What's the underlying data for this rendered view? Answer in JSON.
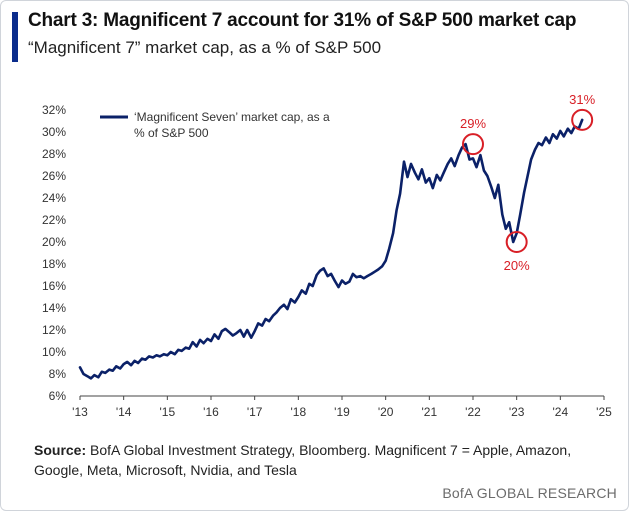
{
  "header": {
    "title": "Chart 3: Magnificent 7 account for 31% of S&P 500 market cap",
    "subtitle": "“Magnificent 7” market cap, as a % of S&P 500"
  },
  "footer": {
    "source_label": "Source:",
    "source_text": " BofA Global Investment Strategy, Bloomberg. Magnificent 7 = Apple, Amazon, Google, Meta, Microsoft, Nvidia, and Tesla",
    "brand": "BofA GLOBAL RESEARCH"
  },
  "colors": {
    "line": "#0b2168",
    "accent": "#0b2c8c",
    "highlight": "#d81f26",
    "axis": "#444444"
  },
  "chart_data": {
    "type": "line",
    "ylim": [
      6,
      32
    ],
    "xlim": [
      2013,
      2025
    ],
    "y_ticks": [
      6,
      8,
      10,
      12,
      14,
      16,
      18,
      20,
      22,
      24,
      26,
      28,
      30,
      32
    ],
    "y_tick_labels": [
      "6%",
      "8%",
      "10%",
      "12%",
      "14%",
      "16%",
      "18%",
      "20%",
      "22%",
      "24%",
      "26%",
      "28%",
      "30%",
      "32%"
    ],
    "x_ticks": [
      2013,
      2014,
      2015,
      2016,
      2017,
      2018,
      2019,
      2020,
      2021,
      2022,
      2023,
      2024,
      2025
    ],
    "x_tick_labels": [
      "'13",
      "'14",
      "'15",
      "'16",
      "'17",
      "'18",
      "'19",
      "'20",
      "'21",
      "'22",
      "'23",
      "'24",
      "'25"
    ],
    "grid": false,
    "legend_position": "top-left",
    "series": [
      {
        "name": "‘Magnificent Seven’ market cap, as a % of S&P 500",
        "x": [
          2013.0,
          2013.08,
          2013.17,
          2013.25,
          2013.33,
          2013.42,
          2013.5,
          2013.58,
          2013.67,
          2013.75,
          2013.83,
          2013.92,
          2014.0,
          2014.08,
          2014.17,
          2014.25,
          2014.33,
          2014.42,
          2014.5,
          2014.58,
          2014.67,
          2014.75,
          2014.83,
          2014.92,
          2015.0,
          2015.08,
          2015.17,
          2015.25,
          2015.33,
          2015.42,
          2015.5,
          2015.58,
          2015.67,
          2015.75,
          2015.83,
          2015.92,
          2016.0,
          2016.08,
          2016.17,
          2016.25,
          2016.33,
          2016.42,
          2016.5,
          2016.58,
          2016.67,
          2016.75,
          2016.83,
          2016.92,
          2017.0,
          2017.08,
          2017.17,
          2017.25,
          2017.33,
          2017.42,
          2017.5,
          2017.58,
          2017.67,
          2017.75,
          2017.83,
          2017.92,
          2018.0,
          2018.08,
          2018.17,
          2018.25,
          2018.33,
          2018.42,
          2018.5,
          2018.58,
          2018.67,
          2018.75,
          2018.83,
          2018.92,
          2019.0,
          2019.08,
          2019.17,
          2019.25,
          2019.33,
          2019.42,
          2019.5,
          2019.58,
          2019.67,
          2019.75,
          2019.83,
          2019.92,
          2020.0,
          2020.08,
          2020.17,
          2020.25,
          2020.33,
          2020.42,
          2020.5,
          2020.58,
          2020.67,
          2020.75,
          2020.83,
          2020.92,
          2021.0,
          2021.08,
          2021.17,
          2021.25,
          2021.33,
          2021.42,
          2021.5,
          2021.58,
          2021.67,
          2021.75,
          2021.83,
          2021.92,
          2022.0,
          2022.08,
          2022.17,
          2022.25,
          2022.33,
          2022.42,
          2022.5,
          2022.58,
          2022.67,
          2022.75,
          2022.83,
          2022.92,
          2023.0,
          2023.08,
          2023.17,
          2023.25,
          2023.33,
          2023.42,
          2023.5,
          2023.58,
          2023.67,
          2023.75,
          2023.83,
          2023.92,
          2024.0,
          2024.08,
          2024.17,
          2024.25,
          2024.33,
          2024.42,
          2024.5
        ],
        "values": [
          8.6,
          8.0,
          7.8,
          7.6,
          7.9,
          7.7,
          8.2,
          8.1,
          8.4,
          8.3,
          8.7,
          8.5,
          8.9,
          9.1,
          8.8,
          9.2,
          9.0,
          9.4,
          9.3,
          9.6,
          9.5,
          9.7,
          9.6,
          9.8,
          9.7,
          10.0,
          9.8,
          10.2,
          10.1,
          10.4,
          10.3,
          10.9,
          10.5,
          11.1,
          10.8,
          11.2,
          11.0,
          11.6,
          11.2,
          11.9,
          12.1,
          11.8,
          11.5,
          11.7,
          12.0,
          11.4,
          12.0,
          11.3,
          11.9,
          12.6,
          12.4,
          13.0,
          12.8,
          13.3,
          13.6,
          14.0,
          14.3,
          13.9,
          14.8,
          14.5,
          15.0,
          15.6,
          15.3,
          16.2,
          16.0,
          17.0,
          17.4,
          17.6,
          16.9,
          17.1,
          16.5,
          15.9,
          16.5,
          16.2,
          16.4,
          17.1,
          16.8,
          16.9,
          16.7,
          16.9,
          17.1,
          17.3,
          17.5,
          17.8,
          18.3,
          19.4,
          20.8,
          22.9,
          24.4,
          27.3,
          25.9,
          27.1,
          26.3,
          25.7,
          26.6,
          25.4,
          25.8,
          24.9,
          26.1,
          25.6,
          26.3,
          27.1,
          27.6,
          26.9,
          27.9,
          28.6,
          28.9,
          27.5,
          27.6,
          26.8,
          27.9,
          26.5,
          26.0,
          25.0,
          24.0,
          25.2,
          22.5,
          21.2,
          21.8,
          20.0,
          20.8,
          22.5,
          24.5,
          26.0,
          27.5,
          28.4,
          29.0,
          28.8,
          29.5,
          29.0,
          29.8,
          29.4,
          30.1,
          29.6,
          30.3,
          29.9,
          30.5,
          30.3,
          31.1
        ]
      }
    ],
    "annotations": [
      {
        "label": "29%",
        "x": 2022.0,
        "y": 28.9,
        "placement": "above"
      },
      {
        "label": "20%",
        "x": 2023.0,
        "y": 20.0,
        "placement": "below"
      },
      {
        "label": "31%",
        "x": 2024.5,
        "y": 31.1,
        "placement": "above"
      }
    ]
  }
}
